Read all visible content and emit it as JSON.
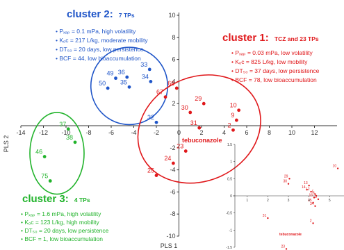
{
  "colors": {
    "cluster1": "#e0181b",
    "cluster2": "#1f55c8",
    "cluster3": "#21b32b",
    "axis": "#333333"
  },
  "chart_data": {
    "type": "scatter",
    "xlabel": "PLS 1",
    "ylabel": "PLS 2",
    "xlim": [
      -14,
      14
    ],
    "ylim": [
      -10,
      10
    ],
    "x_ticks": [
      -14,
      -12,
      -10,
      -8,
      -6,
      -4,
      -2,
      0,
      2,
      4,
      6,
      8,
      10,
      12
    ],
    "y_ticks": [
      10,
      8,
      6,
      4,
      2,
      -2,
      -4,
      -6,
      -8,
      -10
    ],
    "series": [
      {
        "key": "cluster2",
        "points": [
          {
            "label": "33",
            "x": -2.6,
            "y": 5.1
          },
          {
            "label": "34",
            "x": -2.5,
            "y": 4.0
          },
          {
            "label": "36",
            "x": -4.6,
            "y": 4.4
          },
          {
            "label": "35",
            "x": -4.4,
            "y": 3.5
          },
          {
            "label": "49",
            "x": -5.6,
            "y": 4.3
          },
          {
            "label": "50",
            "x": -6.3,
            "y": 3.4
          },
          {
            "label": "32",
            "x": -2.0,
            "y": 0.3
          }
        ]
      },
      {
        "key": "cluster3",
        "points": [
          {
            "label": "37",
            "x": -9.8,
            "y": -0.3
          },
          {
            "label": "38",
            "x": -9.2,
            "y": -1.5
          },
          {
            "label": "46",
            "x": -11.9,
            "y": -2.8
          },
          {
            "label": "75",
            "x": -11.4,
            "y": -5.0
          }
        ]
      },
      {
        "key": "cluster1",
        "points": [
          {
            "label": "66",
            "x": -0.2,
            "y": 3.4
          },
          {
            "label": "67",
            "x": -1.2,
            "y": 2.6
          },
          {
            "label": "29",
            "x": 2.2,
            "y": 2.0
          },
          {
            "label": "30",
            "x": 1.0,
            "y": 1.2
          },
          {
            "label": "31",
            "x": 1.8,
            "y": -0.2
          },
          {
            "label": "10",
            "x": 5.3,
            "y": 1.4
          },
          {
            "label": "9",
            "x": 5.1,
            "y": 0.5
          },
          {
            "label": "2",
            "x": 4.8,
            "y": -0.4
          },
          {
            "label": "23",
            "x": 0.6,
            "y": -2.3
          },
          {
            "label": "24",
            "x": -0.5,
            "y": -3.4
          },
          {
            "label": "25",
            "x": -2.0,
            "y": -4.5
          }
        ]
      }
    ],
    "annotation": "tebuconazole"
  },
  "clusters": [
    {
      "key": "cluster2",
      "title": "cluster 2:",
      "subtitle": "7 TPs",
      "lines": [
        "• Pₓₐₚ = 0.1 mPa, high volatility",
        "• Kₒc = 217 L/kg, moderate mobility",
        "• DT₅₀ = 20 days, low persistence",
        "• BCF = 44, low bioaccumulation"
      ]
    },
    {
      "key": "cluster1",
      "title": "cluster 1:",
      "subtitle": "TCZ and 23 TPs",
      "lines": [
        "• Pₓₐₚ = 0.03 mPa, low volatility",
        "• Kₒc = 825 L/kg, low mobility",
        "• DT₅₀ = 37 days, low persistence",
        "• BCF = 78, low bioaccumulation"
      ]
    },
    {
      "key": "cluster3",
      "title": "cluster 3:",
      "subtitle": "4 TPs",
      "lines": [
        "• Pₓₐₚ = 1.6 mPa, high volatility",
        "• Kₒc = 123 L/kg, high mobility",
        "• DT₅₀ = 20 days, low persistence",
        "• BCF = 1, low bioaccumulation"
      ]
    }
  ],
  "inset": {
    "x_ticks": [
      "1",
      "2",
      "3",
      "4",
      "5"
    ],
    "y_ticks": [
      "1.5",
      "1",
      "0.5",
      "0",
      "-0.5",
      "-1",
      "-1.5"
    ],
    "points": [
      {
        "label": "29",
        "x": 3.05,
        "y": 0.5
      },
      {
        "label": "30",
        "x": 3.0,
        "y": 0.35
      },
      {
        "label": "13",
        "x": 4.0,
        "y": 0.3
      },
      {
        "label": "14",
        "x": 3.9,
        "y": 0.18
      },
      {
        "label": "12",
        "x": 4.1,
        "y": 0.12
      },
      {
        "label": "5",
        "x": 4.3,
        "y": 0.05
      },
      {
        "label": "6",
        "x": 4.35,
        "y": 0.0
      },
      {
        "label": "16",
        "x": 4.25,
        "y": -0.05
      },
      {
        "label": "15",
        "x": 4.2,
        "y": -0.2
      },
      {
        "label": "3",
        "x": 4.45,
        "y": -0.1
      },
      {
        "label": "34",
        "x": 4.3,
        "y": -0.3
      },
      {
        "label": "31",
        "x": 2.0,
        "y": -0.65
      },
      {
        "label": "2",
        "x": 4.2,
        "y": -0.8
      },
      {
        "label": "10",
        "x": 5.4,
        "y": 0.8
      },
      {
        "label": "23",
        "x": 2.9,
        "y": -1.55
      }
    ],
    "annotation": "tebuconazole",
    "annotation_x": 3.3,
    "annotation_y": -1.15
  }
}
